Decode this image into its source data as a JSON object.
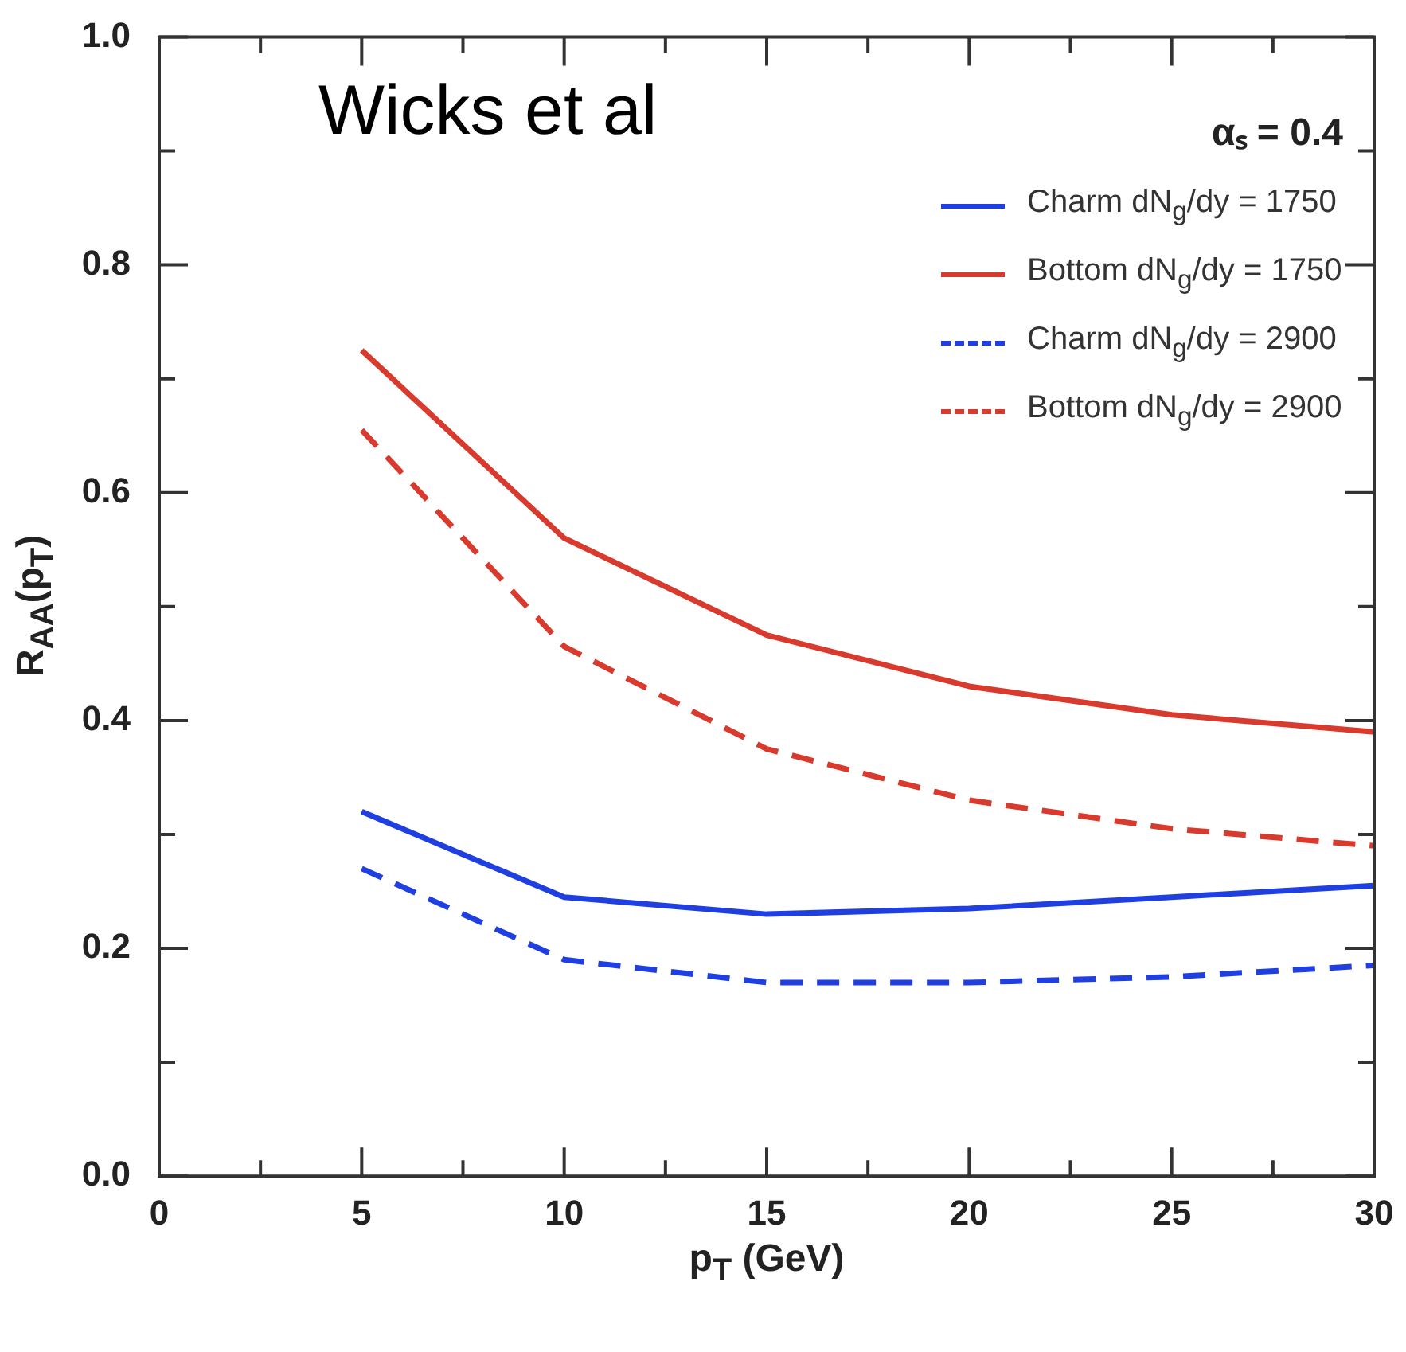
{
  "chart_data": {
    "type": "line",
    "xlabel": "p$_{T}$ (GeV)",
    "ylabel": "R$_{AA}$(p$_{T}$)",
    "annotations": [
      "Wicks et al",
      "αₛ = 0.4"
    ],
    "x": [
      5,
      10,
      15,
      20,
      25,
      30
    ],
    "series": [
      {
        "name": "Charm dN$_{g}$/dy = 1750",
        "color": "#1f3fe0",
        "line_style": "solid",
        "values": [
          0.32,
          0.245,
          0.23,
          0.235,
          0.245,
          0.255
        ]
      },
      {
        "name": "Bottom dN$_{g}$/dy = 1750",
        "color": "#d83a2e",
        "line_style": "solid",
        "values": [
          0.725,
          0.56,
          0.475,
          0.43,
          0.405,
          0.39
        ]
      },
      {
        "name": "Charm dN$_{g}$/dy = 2900",
        "color": "#1f3fe0",
        "line_style": "dashed",
        "values": [
          0.27,
          0.19,
          0.17,
          0.17,
          0.175,
          0.185
        ]
      },
      {
        "name": "Bottom dN$_{g}$/dy = 2900",
        "color": "#d83a2e",
        "line_style": "dashed",
        "values": [
          0.655,
          0.465,
          0.375,
          0.33,
          0.305,
          0.29
        ]
      }
    ],
    "xlim": [
      0,
      30
    ],
    "xticks": [
      0,
      {
        "value": 2.5,
        "label": null
      },
      5,
      {
        "value": 7.5,
        "label": null
      },
      10,
      {
        "value": 12.5,
        "label": null
      },
      15,
      {
        "value": 17.5,
        "label": null
      },
      20,
      {
        "value": 22.5,
        "label": null
      },
      25,
      {
        "value": 27.5,
        "label": null
      },
      30
    ],
    "ylim": [
      0,
      1
    ],
    "yticks": [
      {
        "value": 0,
        "label": "0.0"
      },
      {
        "value": 0.1,
        "label": null
      },
      0.2,
      {
        "value": 0.3,
        "label": null
      },
      0.4,
      {
        "value": 0.5,
        "label": null
      },
      0.6,
      {
        "value": 0.7,
        "label": null
      },
      0.8,
      {
        "value": 0.9,
        "label": null
      },
      {
        "value": 1,
        "label": "1.0"
      }
    ],
    "grid": false,
    "legend": "top right",
    "marker": "none"
  }
}
